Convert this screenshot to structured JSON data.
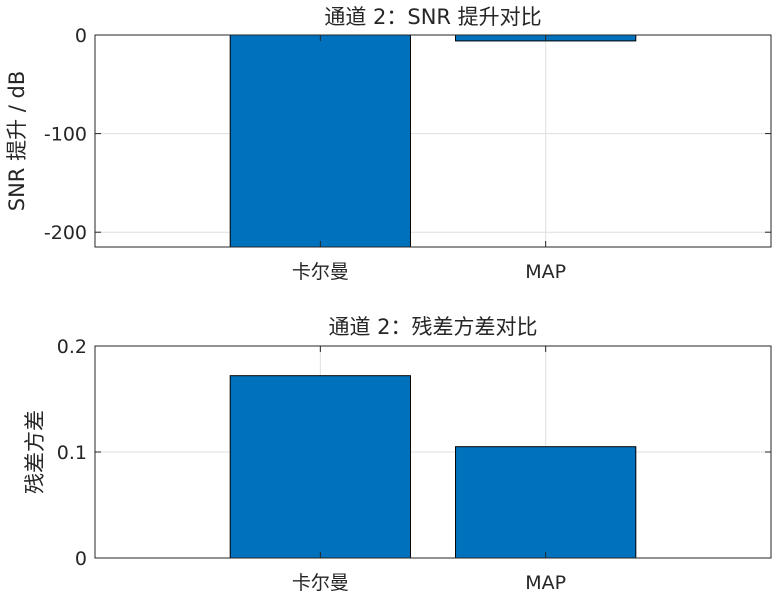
{
  "chart_data": [
    {
      "type": "bar",
      "title": "通道 2：SNR 提升对比",
      "xlabel": "",
      "ylabel": "SNR 提升 / dB",
      "categories": [
        "卡尔曼",
        "MAP"
      ],
      "values": [
        -215,
        -6
      ],
      "ylim": [
        -215,
        0
      ],
      "yticks": [
        -200,
        -100,
        0
      ],
      "ytick_labels": [
        "-200",
        "-100",
        "0"
      ],
      "grid": true,
      "bar_color": "#0072BD"
    },
    {
      "type": "bar",
      "title": "通道 2：残差方差对比",
      "xlabel": "",
      "ylabel": "残差方差",
      "categories": [
        "卡尔曼",
        "MAP"
      ],
      "values": [
        0.172,
        0.105
      ],
      "ylim": [
        0,
        0.2
      ],
      "yticks": [
        0,
        0.1,
        0.2
      ],
      "ytick_labels": [
        "0",
        "0.1",
        "0.2"
      ],
      "grid": true,
      "bar_color": "#0072BD"
    }
  ]
}
